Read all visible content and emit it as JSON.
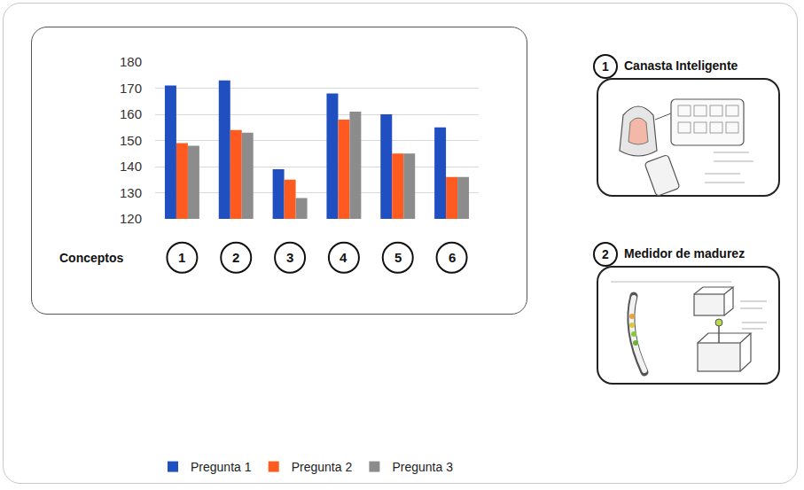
{
  "chart_data": {
    "type": "bar",
    "x_label": "Conceptos",
    "categories": [
      "1",
      "2",
      "3",
      "4",
      "5",
      "6"
    ],
    "series": [
      {
        "name": "Pregunta 1",
        "color": "#1f4fc0",
        "values": [
          171,
          173,
          139,
          168,
          160,
          155
        ]
      },
      {
        "name": "Pregunta 2",
        "color": "#ff5a1f",
        "values": [
          149,
          154,
          135,
          158,
          145,
          136
        ]
      },
      {
        "name": "Pregunta 3",
        "color": "#8c8c8c",
        "values": [
          148,
          153,
          128,
          161,
          145,
          136
        ]
      }
    ],
    "ylim": [
      120,
      180
    ],
    "yticks": [
      120,
      130,
      140,
      150,
      160,
      170,
      180
    ],
    "grid": true,
    "legend": "bottom"
  },
  "concept_cards": [
    {
      "number": 1,
      "title": "Canasta Inteligente"
    },
    {
      "number": 2,
      "title": "Medidor de madurez"
    }
  ]
}
